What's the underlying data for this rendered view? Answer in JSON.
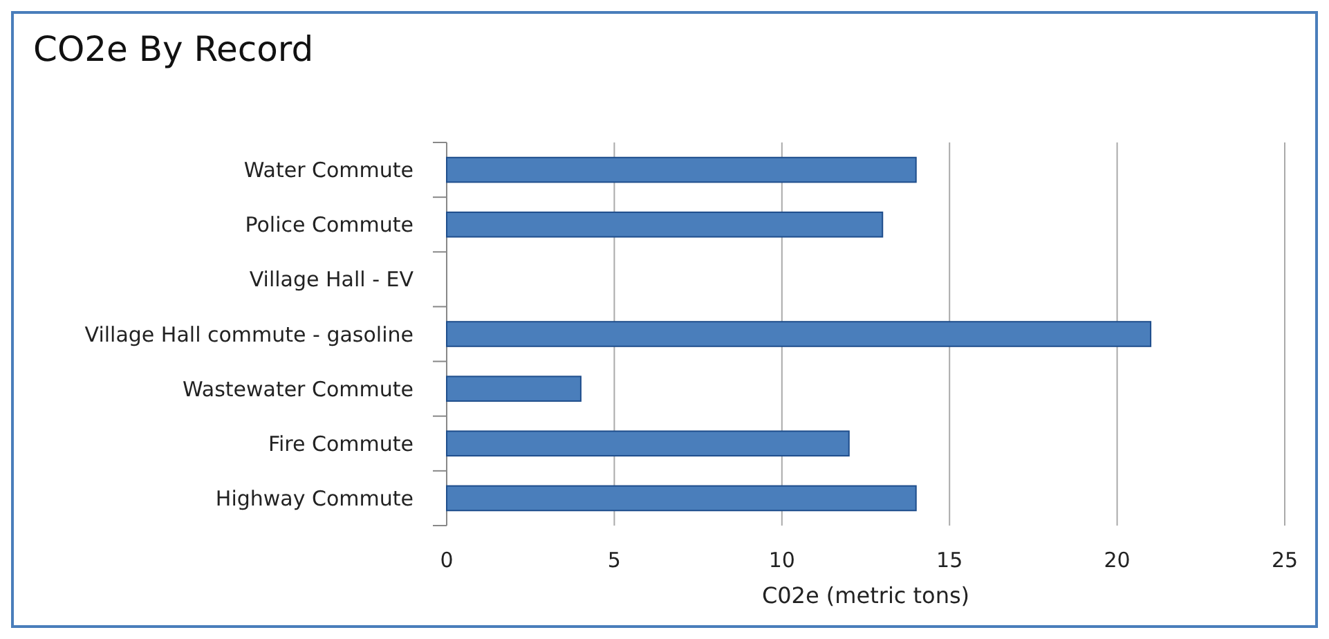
{
  "chart_data": {
    "type": "bar",
    "orientation": "horizontal",
    "title": "CO2e By Record",
    "xlabel": "C02e (metric tons)",
    "categories": [
      "Water Commute",
      "Police Commute",
      "Village Hall - EV",
      "Village Hall commute - gasoline",
      "Wastewater Commute",
      "Fire Commute",
      "Highway Commute"
    ],
    "values": [
      14,
      13,
      0,
      21,
      4,
      12,
      14
    ],
    "color": "#4a7ebb",
    "xlim": [
      0,
      25
    ],
    "xticks": [
      0,
      5,
      10,
      15,
      20,
      25
    ],
    "grid": "x"
  }
}
